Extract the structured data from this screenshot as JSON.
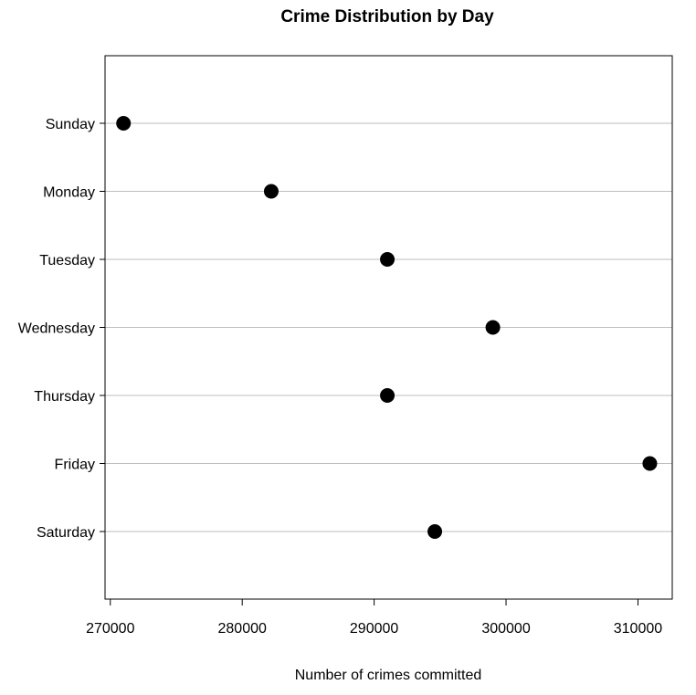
{
  "chart_data": {
    "type": "scatter",
    "title": "Crime Distribution by Day",
    "xlabel": "Number of crimes committed",
    "ylabel": "",
    "categories": [
      "Sunday",
      "Monday",
      "Tuesday",
      "Wednesday",
      "Thursday",
      "Friday",
      "Saturday"
    ],
    "values": [
      271000,
      282200,
      291000,
      299000,
      291000,
      310900,
      294600
    ],
    "xlim": [
      269600,
      312600
    ],
    "xticks": [
      270000,
      280000,
      290000,
      300000,
      310000
    ],
    "xtick_labels": [
      "270000",
      "280000",
      "290000",
      "300000",
      "310000"
    ],
    "grid": "horizontal lines per category",
    "point_color": "#000000",
    "grid_color": "#bebebe",
    "legend": "none"
  }
}
